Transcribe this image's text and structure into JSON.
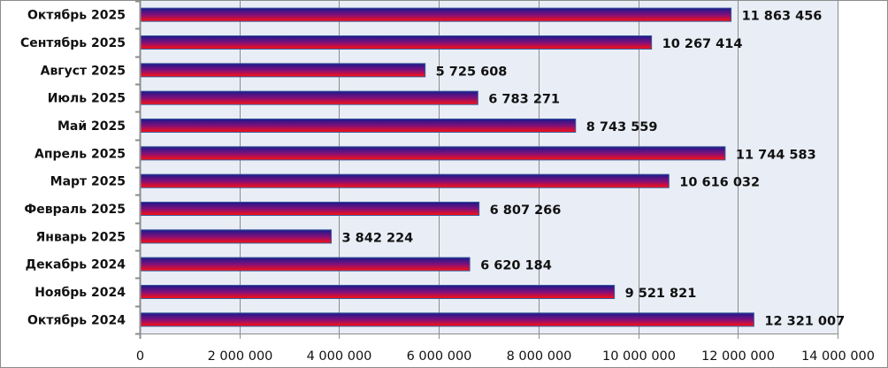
{
  "chart_data": {
    "type": "bar",
    "orientation": "horizontal",
    "title": "",
    "xlabel": "",
    "ylabel": "",
    "categories": [
      "Октябрь 2025",
      "Сентябрь 2025",
      "Август 2025",
      "Июль 2025",
      "Май 2025",
      "Апрель 2025",
      "Март 2025",
      "Февраль 2025",
      "Январь 2025",
      "Декабрь 2024",
      "Ноябрь 2024",
      "Октябрь 2024"
    ],
    "values": [
      11863456,
      10267414,
      5725608,
      6783271,
      8743559,
      11744583,
      10616032,
      6807266,
      3842224,
      6620184,
      9521821,
      12321007
    ],
    "value_labels": [
      "11 863 456",
      "10 267 414",
      "5 725 608",
      "6 783 271",
      "8 743 559",
      "11 744 583",
      "10 616 032",
      "6 807 266",
      "3 842 224",
      "6 620 184",
      "9 521 821",
      "12 321 007"
    ],
    "xlim": [
      0,
      14000000
    ],
    "x_ticks": [
      0,
      2000000,
      4000000,
      6000000,
      8000000,
      10000000,
      12000000,
      14000000
    ],
    "x_tick_labels": [
      "0",
      "2 000 000",
      "4 000 000",
      "6 000 000",
      "8 000 000",
      "10 000 000",
      "12 000 000",
      "14 000 000"
    ],
    "grid": true,
    "legend": "none",
    "colors": {
      "plot_bg": "#e9edf6",
      "grid": "#8c8c8c",
      "bar_top": "#1a1a8c",
      "bar_mid": "#80107a",
      "bar_bottom": "#ff1010",
      "bar_border": "#3a5a9a"
    }
  }
}
